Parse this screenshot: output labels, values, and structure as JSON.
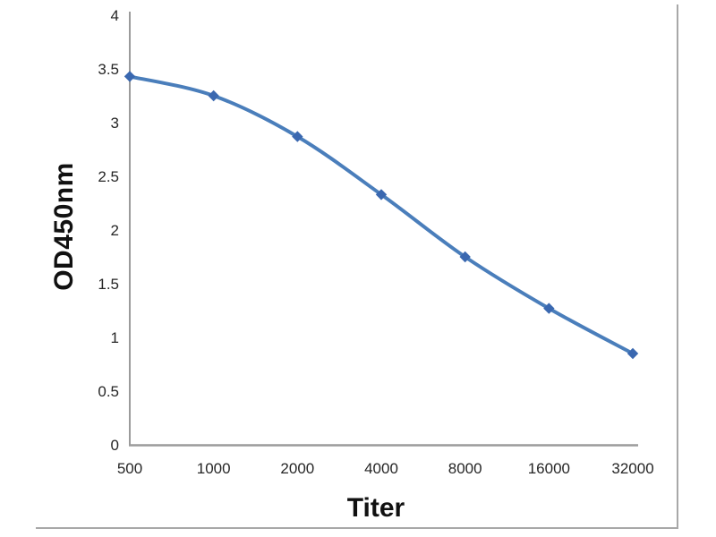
{
  "chart_data": {
    "type": "line",
    "title": "",
    "xlabel": "Titer",
    "ylabel": "OD450nm",
    "categories": [
      "500",
      "1000",
      "2000",
      "4000",
      "8000",
      "16000",
      "32000"
    ],
    "series": [
      {
        "name": "OD450nm",
        "values": [
          3.43,
          3.25,
          2.87,
          2.33,
          1.75,
          1.27,
          0.85
        ]
      }
    ],
    "ylim": [
      0,
      4
    ],
    "ytick_step": 0.5,
    "yticks": [
      "0",
      "0.5",
      "1",
      "1.5",
      "2",
      "2.5",
      "3",
      "3.5",
      "4"
    ],
    "grid": "off",
    "legend": "none",
    "smooth": true,
    "marker": "diamond",
    "colors": {
      "line": "#4a7ebb",
      "marker": "#3a68b0",
      "axis": "#9b9b9b",
      "tick_text": "#262626",
      "axis_title_text": "#111111",
      "image_border": "#a8a8a8",
      "background": "#ffffff"
    }
  }
}
